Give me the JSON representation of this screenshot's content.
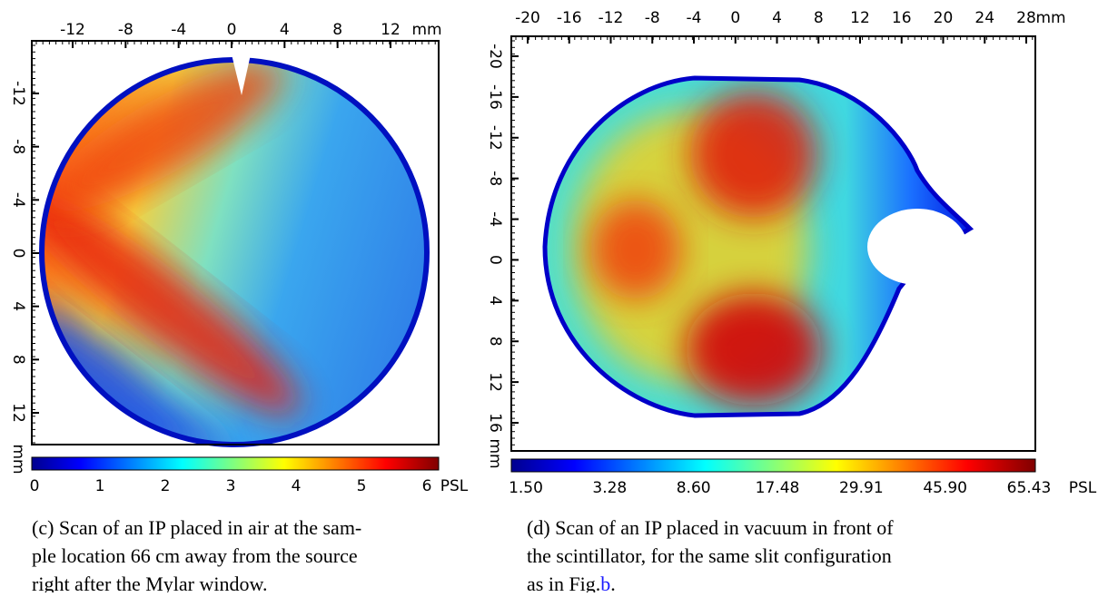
{
  "panels": [
    {
      "top_ticks": [
        "-12",
        "-8",
        "-4",
        "0",
        "4",
        "8",
        "12"
      ],
      "top_unit": "mm",
      "left_ticks": [
        "-12",
        "-8",
        "-4",
        "0",
        "4",
        "8",
        "12"
      ],
      "left_unit": "mm",
      "colorbar_ticks": [
        "0",
        "1",
        "2",
        "3",
        "4",
        "5",
        "6"
      ],
      "colorbar_unit": "PSL",
      "caption_lines": [
        "(c) Scan of an IP placed in air at the sam-",
        "ple location 66 cm away from the source",
        "right after the Mylar window."
      ]
    },
    {
      "top_ticks": [
        "-20",
        "-16",
        "-12",
        "-8",
        "-4",
        "0",
        "4",
        "8",
        "12",
        "16",
        "20",
        "24",
        "28"
      ],
      "top_unit": "mm",
      "left_ticks": [
        "-20",
        "-16",
        "-12",
        "-8",
        "-4",
        "0",
        "4",
        "8",
        "12",
        "16"
      ],
      "left_unit": "mm",
      "colorbar_ticks": [
        "1.50",
        "3.28",
        "8.60",
        "17.48",
        "29.91",
        "45.90",
        "65.43"
      ],
      "colorbar_unit": "PSL",
      "caption_lines": [
        "(d) Scan of an IP placed in vacuum in front of",
        "the scintillator, for the same slit configuration",
        "as in Fig."
      ],
      "caption_ref": "b",
      "caption_end": "."
    }
  ]
}
